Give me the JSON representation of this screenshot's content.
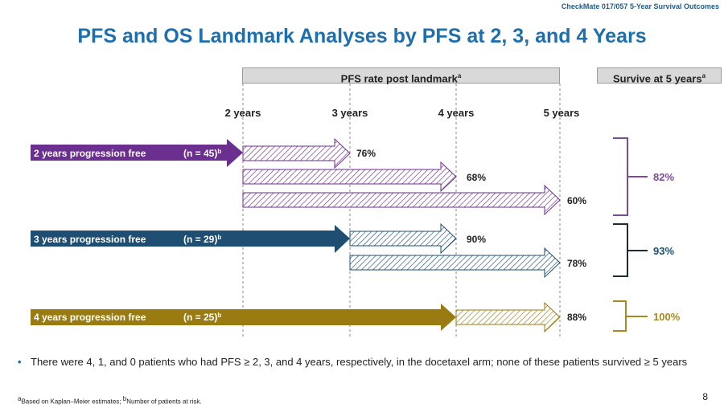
{
  "header": {
    "top_right": "CheckMate 017/057 5-Year Survival Outcomes",
    "title": "PFS and OS Landmark Analyses by PFS at 2, 3, and 4 Years"
  },
  "column_headers": {
    "pfs_box": "PFS rate post landmark",
    "pfs_sup": "a",
    "os_box": "Survive at 5 years",
    "os_sup": "a"
  },
  "year_labels": [
    "2 years",
    "3 years",
    "4 years",
    "5 years"
  ],
  "groups": [
    {
      "label": "2 years progression free",
      "n_label": "(n = 45)",
      "sup": "b",
      "color": "#6a2f8f",
      "rates": [
        "76%",
        "68%",
        "60%"
      ],
      "os_rate": "82%",
      "os_color": "#7b4a9a"
    },
    {
      "label": "3 years progression free",
      "n_label": "(n = 29)",
      "sup": "b",
      "color": "#1e4f73",
      "rates": [
        "90%",
        "78%"
      ],
      "os_rate": "93%",
      "os_color": "#1e4f73"
    },
    {
      "label": "4 years progression free",
      "n_label": "(n = 25)",
      "sup": "b",
      "color": "#9a7b12",
      "rates": [
        "88%"
      ],
      "os_rate": "100%",
      "os_color": "#a8881f"
    }
  ],
  "bullet": "There were 4, 1, and 0 patients who had PFS ≥ 2, 3, and 4 years, respectively, in the docetaxel arm; none of these patients survived ≥ 5 years",
  "footnote": {
    "a_sup": "a",
    "a_text": "Based on Kaplan–Meier estimates; ",
    "b_sup": "b",
    "b_text": "Number of patients at risk."
  },
  "page_number": "8"
}
